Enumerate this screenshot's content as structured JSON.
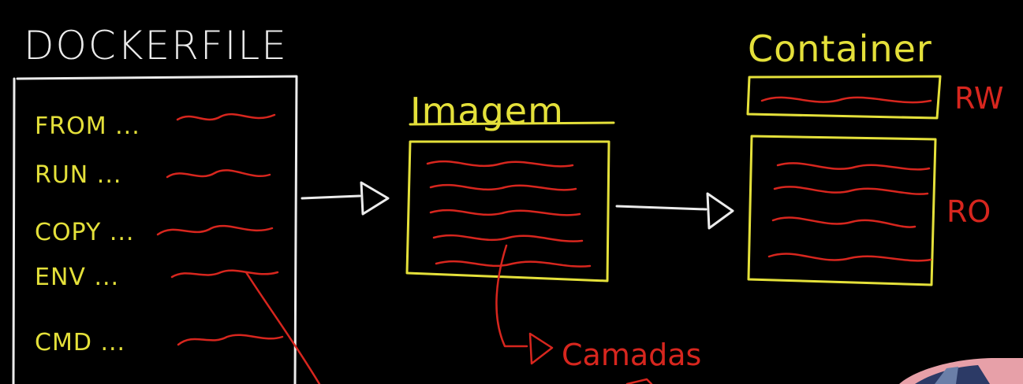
{
  "colors": {
    "background": "#000000",
    "chalk_white": "#ECECEC",
    "chalk_yellow": "#E4E03A",
    "chalk_red": "#D7261E"
  },
  "dockerfile": {
    "title": "DOCKERFILE",
    "instructions": [
      "FROM ...",
      "RUN ...",
      "COPY ...",
      "ENV ...",
      "CMD ..."
    ]
  },
  "image": {
    "title": "Imagem",
    "layers_label": "Camadas"
  },
  "container": {
    "title": "Container",
    "rw_label": "RW",
    "ro_label": "RO"
  }
}
